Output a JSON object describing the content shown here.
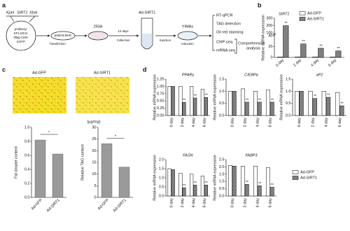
{
  "panel_labels": [
    "a",
    "b",
    "c",
    "d"
  ],
  "diagram": {
    "kpn": "KpnI",
    "gene": "SIRT1",
    "xba": "XbaI",
    "plasmid": [
      "pAdEasy-",
      "EF1-MCS-",
      "3flag-CMV-",
      "EGFP"
    ],
    "backbone": "pHBAd-BHG",
    "transfection": "Transfection",
    "cell": "293A",
    "days": "10 days",
    "collection": "Collection",
    "virus": "Ad-SIRT1",
    "injection": "Injection",
    "target": "YIMAs",
    "induction": "Induction",
    "assays": [
      "RT-qPCR",
      "TAG detection",
      "Oil red stanning",
      "ChIP-seq",
      "mRNA-seq"
    ],
    "analysis": [
      "Comprehensive",
      "analysis"
    ]
  },
  "images": [
    "Ad-GFP",
    "Ad-SIRT1"
  ],
  "chart_data": [
    {
      "type": "bar",
      "title": "SIRT1",
      "ylabel": "Relative mRNA expression",
      "categories": [
        "0 day",
        "2 day",
        "4 day",
        "6 day"
      ],
      "series": [
        {
          "name": "Ad-GFP",
          "color": "#ffffff",
          "values": [
            1,
            1,
            1,
            1
          ]
        },
        {
          "name": "Ad-SIRT1",
          "color": "#000000",
          "pattern": "checker",
          "values": [
            200,
            25,
            17,
            12
          ]
        }
      ],
      "sig": [
        "**",
        "**",
        "**",
        "**"
      ],
      "ylim": [
        0,
        300
      ],
      "y_break": [
        40,
        100
      ],
      "yticks": [
        0,
        20,
        40,
        100,
        200,
        300
      ],
      "legend": "top-right"
    },
    {
      "type": "bar",
      "ylabel": "Fat droplet content",
      "categories": [
        "Ad-GFP",
        "Ad-SIRT1"
      ],
      "values": [
        0.82,
        0.62
      ],
      "color": "#9a9a9a",
      "sig": "*",
      "ylim": [
        0,
        1
      ],
      "yticks": [
        {
          "value": 0,
          "label": "0.0"
        },
        0.2,
        0.4,
        0.6,
        0.8,
        {
          "value": 1,
          "label": "1.0"
        }
      ]
    },
    {
      "type": "bar",
      "ylabel": "Relative TAG content",
      "unit": "(μg/mg)",
      "categories": [
        "Ad-GFP",
        "Ad-SIRT1"
      ],
      "values": [
        23,
        13
      ],
      "color": "#9a9a9a",
      "sig": "*",
      "ylim": [
        0,
        30
      ],
      "yticks": [
        0,
        5,
        10,
        15,
        20,
        25,
        30
      ]
    },
    {
      "type": "bar-grid",
      "ylabel": "Relative mRNA expression",
      "categories": [
        "0 day",
        "2 day",
        "4 day",
        "6 day"
      ],
      "series": [
        {
          "name": "Ad-GFP",
          "color": "#ffffff"
        },
        {
          "name": "Ad-SIRT1",
          "color": "#000000",
          "pattern": "checker"
        }
      ],
      "legend": "bottom-right",
      "panels": [
        {
          "title": "PPARγ",
          "ylim": [
            0,
            1.25
          ],
          "yticks": [
            {
              "value": 0,
              "label": "0.00"
            },
            0.25,
            {
              "value": 0.5,
              "label": "0.50"
            },
            0.75,
            {
              "value": 1,
              "label": "1.00"
            },
            1.25
          ],
          "values": [
            [
              1.0,
              1.0,
              1.0,
              0.9
            ],
            [
              1.0,
              0.45,
              0.6,
              0.62
            ]
          ],
          "sig": [
            null,
            "**",
            "**",
            "**"
          ]
        },
        {
          "title": "C/EBPα",
          "ylim": [
            0,
            1.5
          ],
          "yticks": [
            {
              "value": 0,
              "label": "0.0"
            },
            0.5,
            {
              "value": 1,
              "label": "1.0"
            },
            1.5
          ],
          "values": [
            [
              1.0,
              1.1,
              1.0,
              1.05
            ],
            [
              1.0,
              0.55,
              0.55,
              0.55
            ]
          ],
          "sig": [
            null,
            "**",
            "**",
            "**"
          ]
        },
        {
          "title": "aP2",
          "ylim": [
            0,
            1.5
          ],
          "yticks": [
            {
              "value": 0,
              "label": "0.0"
            },
            0.5,
            {
              "value": 1,
              "label": "1.0"
            },
            1.5
          ],
          "values": [
            [
              1.0,
              1.0,
              1.0,
              0.95
            ],
            [
              1.0,
              0.7,
              0.75,
              0.4
            ]
          ],
          "sig": [
            null,
            "**",
            "**",
            "**"
          ]
        },
        {
          "title": "FASN",
          "ylim": [
            0,
            2
          ],
          "yticks": [
            {
              "value": 0,
              "label": "0.0"
            },
            0.5,
            {
              "value": 1,
              "label": "1.0"
            },
            1.5,
            {
              "value": 2,
              "label": "2.0"
            }
          ],
          "values": [
            [
              1.5,
              1.25,
              1.2,
              1.1
            ],
            [
              1.45,
              0.45,
              0.6,
              0.6
            ]
          ],
          "sig": [
            null,
            "**",
            "**",
            "**"
          ]
        },
        {
          "title": "FABP3",
          "ylim": [
            0,
            2.5
          ],
          "yticks": [
            {
              "value": 0,
              "label": "0.0"
            },
            0.5,
            {
              "value": 1,
              "label": "1.0"
            },
            1.5,
            {
              "value": 2,
              "label": "2.0"
            },
            2.5
          ],
          "values": [
            [
              2.1,
              2.05,
              2.05,
              1.95
            ],
            [
              2.05,
              0.8,
              0.7,
              0.6
            ]
          ],
          "sig": [
            null,
            "**",
            "**",
            "**"
          ]
        }
      ]
    }
  ]
}
